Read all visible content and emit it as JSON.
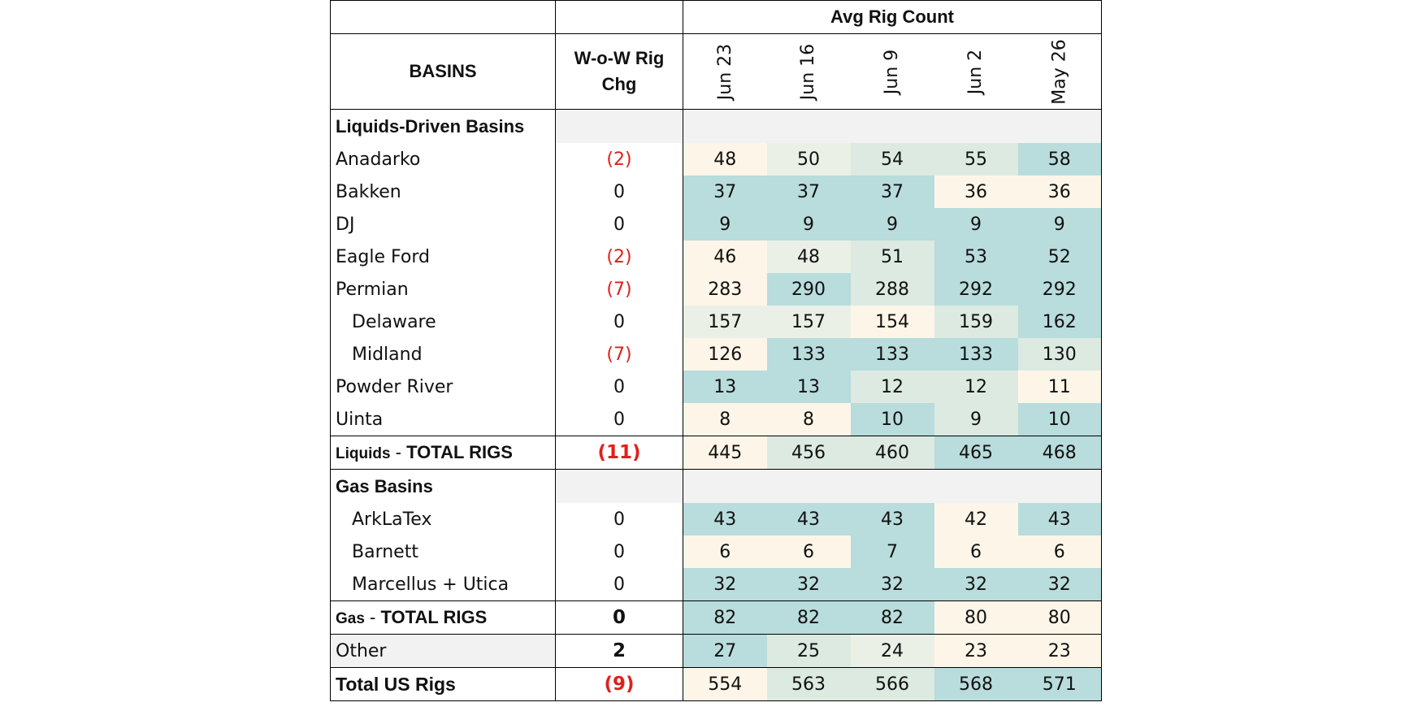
{
  "header": {
    "avg_rig_count": "Avg Rig Count",
    "basins": "BASINS",
    "wow_line1": "W-o-W Rig",
    "wow_line2": "Chg",
    "dates": [
      "Jun 23",
      "Jun 16",
      "Jun 9",
      "Jun 2",
      "May 26"
    ]
  },
  "colors": {
    "heat_teal": "#b9dcdc",
    "heat_light_teal": "#dceae2",
    "heat_neutral": "#eaf0e6",
    "heat_cream": "#fdf6e8",
    "negative_red": "#e0201c",
    "section_fill": "#f2f2f2"
  },
  "liquids": {
    "section_label": "Liquids-Driven Basins",
    "rows": [
      {
        "name": "Anadarko",
        "chg": "(2)",
        "vals": [
          "48",
          "50",
          "54",
          "55",
          "58"
        ]
      },
      {
        "name": "Bakken",
        "chg": "0",
        "vals": [
          "37",
          "37",
          "37",
          "36",
          "36"
        ]
      },
      {
        "name": "DJ",
        "chg": "0",
        "vals": [
          "9",
          "9",
          "9",
          "9",
          "9"
        ]
      },
      {
        "name": "Eagle Ford",
        "chg": "(2)",
        "vals": [
          "46",
          "48",
          "51",
          "53",
          "52"
        ]
      },
      {
        "name": "Permian",
        "chg": "(7)",
        "vals": [
          "283",
          "290",
          "288",
          "292",
          "292"
        ]
      },
      {
        "name": "Delaware",
        "chg": "0",
        "vals": [
          "157",
          "157",
          "154",
          "159",
          "162"
        ]
      },
      {
        "name": "Midland",
        "chg": "(7)",
        "vals": [
          "126",
          "133",
          "133",
          "133",
          "130"
        ]
      },
      {
        "name": "Powder River",
        "chg": "0",
        "vals": [
          "13",
          "13",
          "12",
          "12",
          "11"
        ]
      },
      {
        "name": "Uinta",
        "chg": "0",
        "vals": [
          "8",
          "8",
          "10",
          "9",
          "10"
        ]
      }
    ],
    "total": {
      "prefix": "Liquids",
      "sep": " - ",
      "label": "TOTAL RIGS",
      "chg": "(11)",
      "vals": [
        "445",
        "456",
        "460",
        "465",
        "468"
      ]
    }
  },
  "gas": {
    "section_label": "Gas Basins",
    "rows": [
      {
        "name": "ArkLaTex",
        "chg": "0",
        "vals": [
          "43",
          "43",
          "43",
          "42",
          "43"
        ]
      },
      {
        "name": "Barnett",
        "chg": "0",
        "vals": [
          "6",
          "6",
          "7",
          "6",
          "6"
        ]
      },
      {
        "name": "Marcellus + Utica",
        "chg": "0",
        "vals": [
          "32",
          "32",
          "32",
          "32",
          "32"
        ]
      }
    ],
    "total": {
      "prefix": "Gas",
      "sep": " - ",
      "label": "TOTAL RIGS",
      "chg": "0",
      "vals": [
        "82",
        "82",
        "82",
        "80",
        "80"
      ]
    }
  },
  "other": {
    "name": "Other",
    "chg": "2",
    "vals": [
      "27",
      "25",
      "24",
      "23",
      "23"
    ]
  },
  "us_total": {
    "name": "Total US Rigs",
    "chg": "(9)",
    "vals": [
      "554",
      "563",
      "566",
      "568",
      "571"
    ]
  }
}
